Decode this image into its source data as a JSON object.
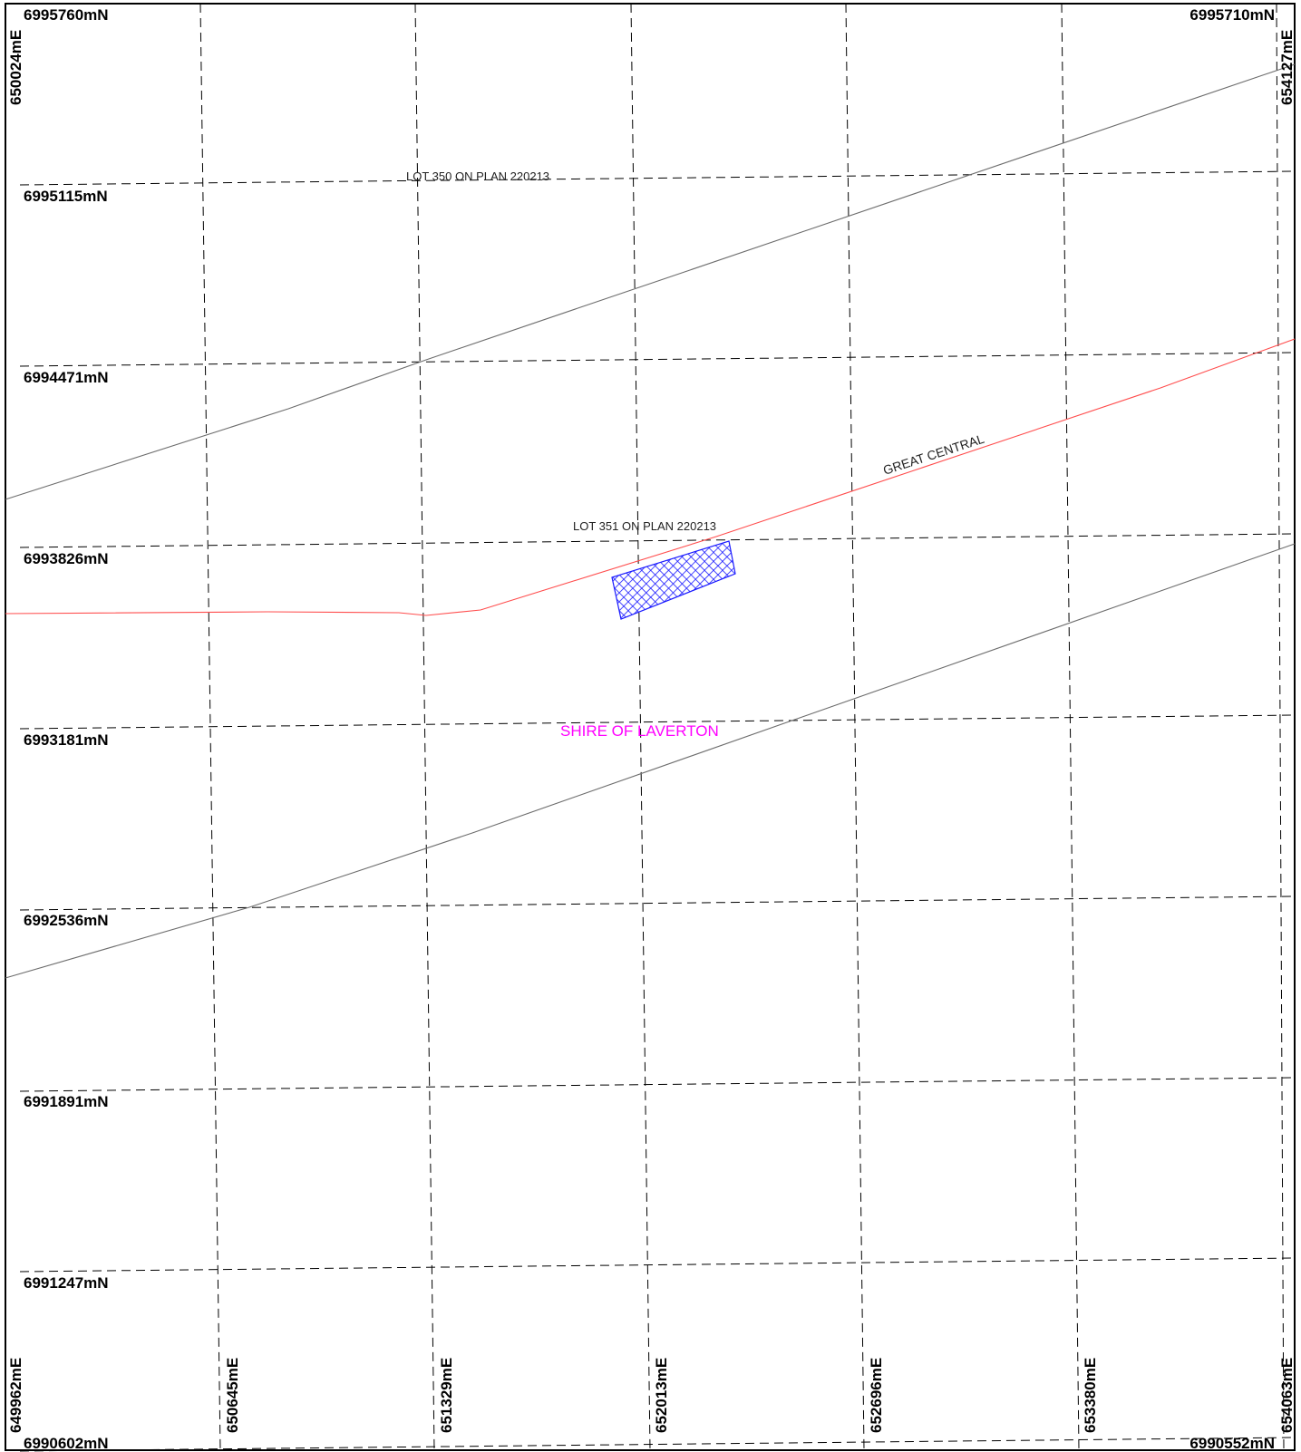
{
  "map": {
    "corner_labels": {
      "top_left_northing": "6995760mN",
      "top_right_northing": "6995710mN",
      "bottom_left_northing": "6990602mN",
      "bottom_right_northing": "6990552mN",
      "top_left_easting": "650024mE",
      "top_right_easting": "654127mE"
    },
    "northing_labels": [
      "6995115mN",
      "6994471mN",
      "6993826mN",
      "6993181mN",
      "6992536mN",
      "6991891mN",
      "6991247mN"
    ],
    "easting_labels": [
      "649962mE",
      "650645mE",
      "651329mE",
      "652013mE",
      "652696mE",
      "653380mE",
      "654063mE"
    ],
    "features": {
      "lot_350": "LOT 350 ON PLAN 220213",
      "lot_351": "LOT 351 ON PLAN 220213",
      "road_name": "GREAT CENTRAL",
      "shire": "SHIRE OF LAVERTON"
    },
    "colors": {
      "grid": "#000000",
      "boundary": "#6d6d6d",
      "road": "#ff4d4d",
      "shire_label": "#ff00ff",
      "tenement_hatch": "#1a1aff"
    }
  }
}
